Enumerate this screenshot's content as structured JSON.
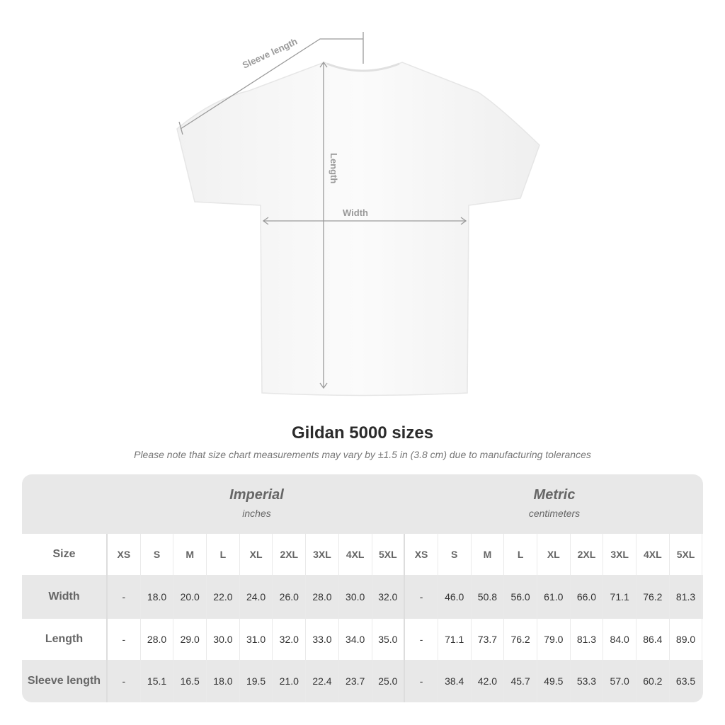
{
  "diagram": {
    "sleeve_label": "Sleeve length",
    "length_label": "Length",
    "width_label": "Width"
  },
  "title": "Gildan 5000 sizes",
  "note": "Please note that size chart measurements may vary by ±1.5 in (3.8 cm) due to manufacturing tolerances",
  "imperial": {
    "name": "Imperial",
    "unit": "inches"
  },
  "metric": {
    "name": "Metric",
    "unit": "centimeters"
  },
  "size_label": "Size",
  "sizes": [
    "XS",
    "S",
    "M",
    "L",
    "XL",
    "2XL",
    "3XL",
    "4XL",
    "5XL"
  ],
  "rows": [
    {
      "label": "Width",
      "imperial": [
        "-",
        "18.0",
        "20.0",
        "22.0",
        "24.0",
        "26.0",
        "28.0",
        "30.0",
        "32.0"
      ],
      "metric": [
        "-",
        "46.0",
        "50.8",
        "56.0",
        "61.0",
        "66.0",
        "71.1",
        "76.2",
        "81.3"
      ]
    },
    {
      "label": "Length",
      "imperial": [
        "-",
        "28.0",
        "29.0",
        "30.0",
        "31.0",
        "32.0",
        "33.0",
        "34.0",
        "35.0"
      ],
      "metric": [
        "-",
        "71.1",
        "73.7",
        "76.2",
        "79.0",
        "81.3",
        "84.0",
        "86.4",
        "89.0"
      ]
    },
    {
      "label": "Sleeve length",
      "imperial": [
        "-",
        "15.1",
        "16.5",
        "18.0",
        "19.5",
        "21.0",
        "22.4",
        "23.7",
        "25.0"
      ],
      "metric": [
        "-",
        "38.4",
        "42.0",
        "45.7",
        "49.5",
        "53.3",
        "57.0",
        "60.2",
        "63.5"
      ]
    }
  ]
}
